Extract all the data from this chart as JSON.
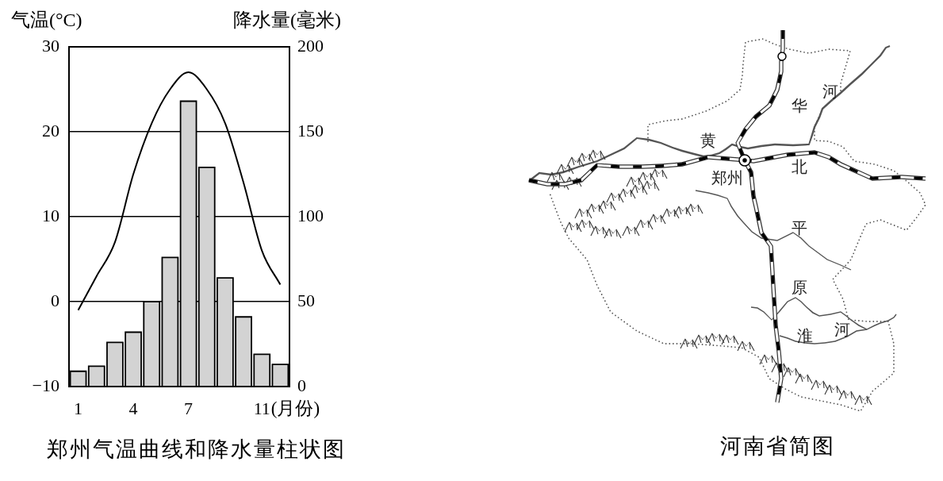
{
  "chart_data": [
    {
      "type": "bar",
      "title": "郑州气温曲线和降水量柱状图",
      "xlabel": "(月份)",
      "ylabel": "气温(°C)",
      "y2label": "降水量(毫米)",
      "categories": [
        "1",
        null,
        null,
        "4",
        null,
        null,
        "7",
        null,
        null,
        null,
        "11",
        null
      ],
      "series": [
        {
          "type": "bar",
          "color": "#d3d3d3",
          "axis": "y2",
          "values": [
            9,
            12,
            26,
            32,
            50,
            76,
            168,
            129,
            64,
            41,
            19,
            13
          ]
        },
        {
          "type": "line",
          "color": "#000000",
          "values": [
            -1,
            3,
            7,
            15,
            21,
            25,
            27,
            25,
            21,
            14,
            6,
            2
          ]
        }
      ],
      "ylim": [
        -10,
        30
      ],
      "yticks": [
        {
          "value": -10,
          "label": "−10"
        },
        0,
        10,
        20,
        30
      ],
      "y2lim": [
        0,
        200
      ],
      "y2ticks": [
        0,
        50,
        100,
        150,
        200
      ],
      "grid": "y"
    },
    {
      "type": "other",
      "title": "河南省简图",
      "annotations": [
        "黄",
        "河",
        "华",
        "北",
        "郑州",
        "平",
        "原",
        "淮",
        "河"
      ]
    }
  ]
}
